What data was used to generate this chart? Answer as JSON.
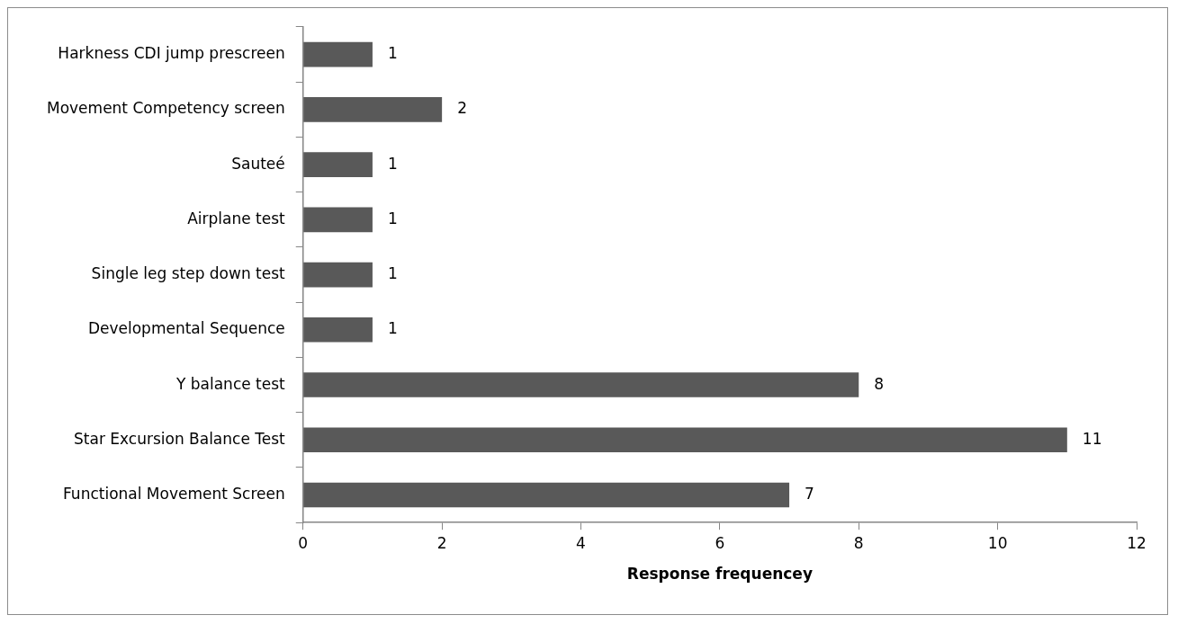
{
  "chart_data": {
    "type": "bar",
    "orientation": "horizontal",
    "xlabel": "Response frequencey",
    "categories": [
      "Harkness CDI jump prescreen",
      "Movement Competency screen",
      "Sauteé",
      "Airplane test",
      "Single leg step down test",
      "Developmental Sequence",
      "Y balance test",
      "Star Excursion Balance Test",
      "Functional Movement Screen"
    ],
    "values": [
      1,
      2,
      1,
      1,
      1,
      1,
      8,
      11,
      7
    ],
    "color": "#595959",
    "xlim": [
      0,
      12
    ],
    "xticks": [
      0,
      2,
      4,
      6,
      8,
      10,
      12
    ],
    "grid": false,
    "legend": false,
    "data_labels": true
  }
}
